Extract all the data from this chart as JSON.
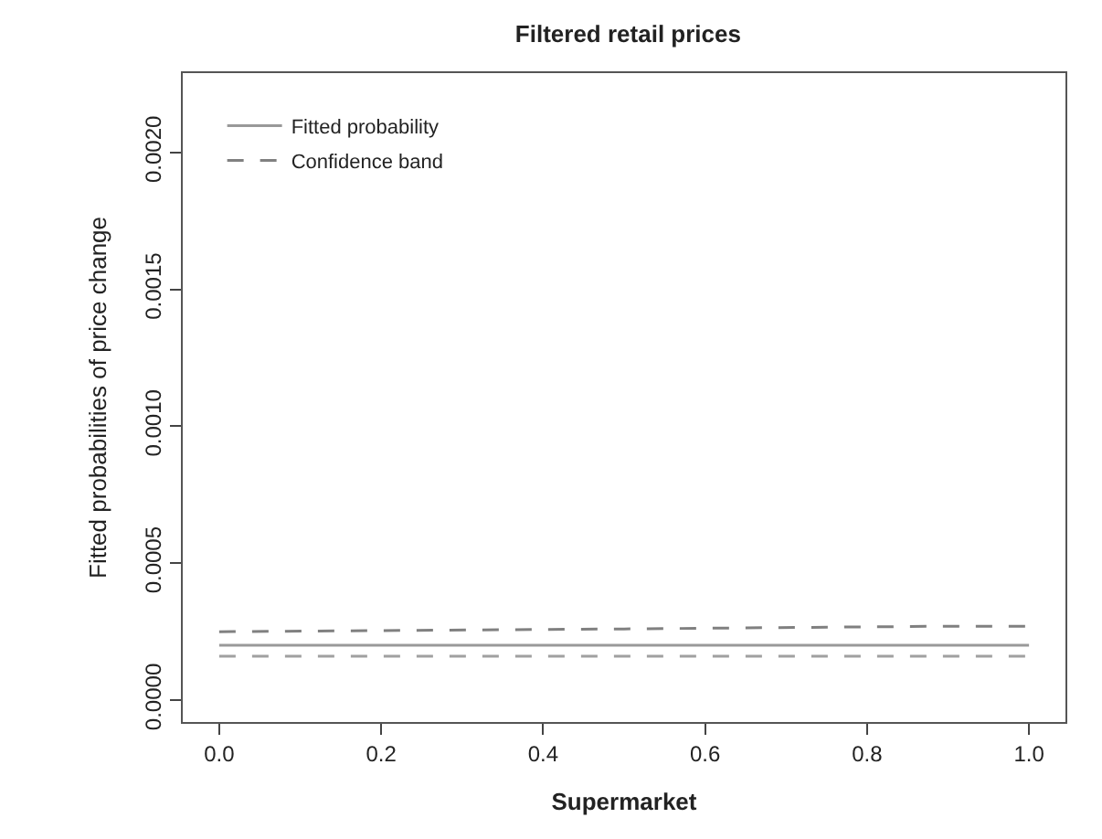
{
  "chart_data": {
    "type": "line",
    "title": "Filtered retail prices",
    "xlabel": "Supermarket",
    "ylabel": "Fitted probabilities of price change",
    "x": [
      0.0,
      0.5,
      0.9,
      1.0
    ],
    "series": [
      {
        "name": "Fitted probability",
        "color": "#999999",
        "line_style": "solid",
        "values": [
          0.0002,
          0.0002,
          0.0002,
          0.0002
        ]
      },
      {
        "name": "Confidence band",
        "color": "#808080",
        "line_style": "dashed",
        "values": [
          0.00025,
          0.00026,
          0.00027,
          0.00027
        ]
      },
      {
        "color": "#a0a0a0",
        "line_style": "dashed",
        "values": [
          0.00016,
          0.00016,
          0.00016,
          0.00016
        ]
      }
    ],
    "xlim": [
      -0.045,
      1.045
    ],
    "xticks": [
      {
        "value": 0,
        "label": "0.0"
      },
      0.2,
      0.4,
      0.6,
      0.8,
      {
        "value": 1,
        "label": "1.0"
      }
    ],
    "ylim": [
      -8e-05,
      0.00229
    ],
    "yticks": [
      {
        "value": 0,
        "label": "0.0000"
      },
      0.0005,
      {
        "value": 0.001,
        "label": "0.0010"
      },
      0.0015,
      {
        "value": 0.002,
        "label": "0.0020"
      }
    ],
    "legend": "top left",
    "marker": "none"
  }
}
